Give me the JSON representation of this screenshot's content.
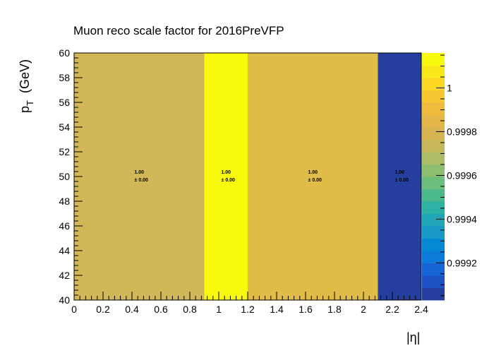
{
  "chart_data": {
    "type": "heatmap",
    "title": "Muon reco scale factor for 2016PreVFP",
    "xlabel": "|η|",
    "ylabel_main": "p",
    "ylabel_sub": "T",
    "ylabel_unit": "(GeV)",
    "xlim": [
      0,
      2.4
    ],
    "ylim": [
      40,
      60
    ],
    "x_bin_edges": [
      0,
      0.9,
      1.2,
      2.1,
      2.4
    ],
    "y_bin_edges": [
      40,
      60
    ],
    "x_ticks": [
      "0",
      "0.2",
      "0.4",
      "0.6",
      "0.8",
      "1",
      "1.2",
      "1.4",
      "1.6",
      "1.8",
      "2",
      "2.2",
      "2.4"
    ],
    "y_ticks": [
      "40",
      "42",
      "44",
      "46",
      "48",
      "50",
      "52",
      "54",
      "56",
      "58",
      "60"
    ],
    "cells": [
      {
        "x_bin": [
          0,
          0.9
        ],
        "y_bin": [
          40,
          60
        ],
        "value": 0.99985,
        "label": "1.00",
        "error_label": "± 0.00",
        "color": "#d1b757"
      },
      {
        "x_bin": [
          0.9,
          1.2
        ],
        "y_bin": [
          40,
          60
        ],
        "value": 1.00012,
        "label": "1.00",
        "error_label": "± 0.00",
        "color": "#f9f90e"
      },
      {
        "x_bin": [
          1.2,
          2.1
        ],
        "y_bin": [
          40,
          60
        ],
        "value": 0.99995,
        "label": "1.00",
        "error_label": "± 0.00",
        "color": "#e0bc48"
      },
      {
        "x_bin": [
          2.1,
          2.4
        ],
        "y_bin": [
          40,
          60
        ],
        "value": 0.99905,
        "label": "1.00",
        "error_label": "± 0.00",
        "color": "#253f9f"
      }
    ],
    "colorbar": {
      "range": [
        0.99903,
        1.00016
      ],
      "tick_values": [
        0.9992,
        0.9994,
        0.9996,
        0.9998,
        1.0
      ],
      "tick_labels": [
        "0.9992",
        "0.9994",
        "0.9996",
        "0.9998",
        "1"
      ],
      "colors": [
        "#253f9f",
        "#1e52c4",
        "#1565d6",
        "#0b7ad8",
        "#0489d2",
        "#1898c5",
        "#20a5b6",
        "#2cb2a3",
        "#4cb98c",
        "#6cbe7c",
        "#8ebf70",
        "#aebc65",
        "#c6b75a",
        "#d7b451",
        "#e4b547",
        "#f0ba3c",
        "#f9c72f",
        "#fcd825",
        "#f9e81a",
        "#f9f90e"
      ]
    },
    "grid": false,
    "legend": "none"
  }
}
